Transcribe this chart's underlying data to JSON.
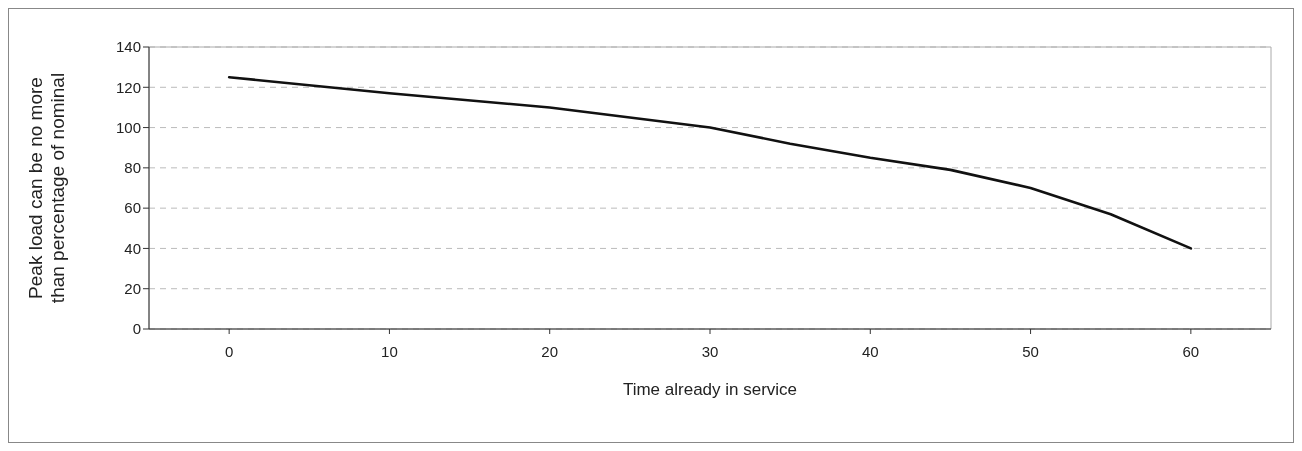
{
  "chart_data": {
    "type": "line",
    "xlabel": "Time already in service",
    "ylabel": "Peak load can be no more than percentage of nominal",
    "x": [
      0,
      10,
      20,
      30,
      35,
      40,
      45,
      50,
      55,
      60
    ],
    "series": [
      {
        "color": "#111111",
        "values": [
          125,
          117,
          110,
          100,
          92,
          85,
          79,
          70,
          57,
          40
        ]
      }
    ],
    "xlim": [
      -5,
      65
    ],
    "xticks": [
      0,
      10,
      20,
      30,
      40,
      50,
      60
    ],
    "ylim": [
      0,
      140
    ],
    "yticks": [
      0,
      20,
      40,
      60,
      80,
      100,
      120,
      140
    ],
    "grid": "y",
    "legend": false,
    "marker": "none",
    "line_style": "solid"
  }
}
